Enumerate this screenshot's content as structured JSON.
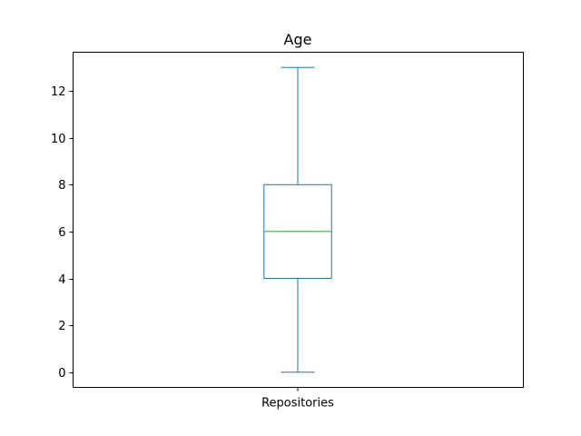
{
  "chart_data": {
    "type": "box",
    "title": "Age",
    "categories": [
      "Repositories"
    ],
    "boxes": [
      {
        "category": "Repositories",
        "whisker_low": 0,
        "q1": 4,
        "median": 6,
        "q3": 8,
        "whisker_high": 13
      }
    ],
    "ylim": [
      -0.65,
      13.65
    ],
    "yticks": [
      0,
      2,
      4,
      6,
      8,
      10,
      12
    ],
    "grid": false,
    "colors": {
      "box": "#1f77b4",
      "median": "#2ca02c",
      "axes": "#000000"
    }
  }
}
